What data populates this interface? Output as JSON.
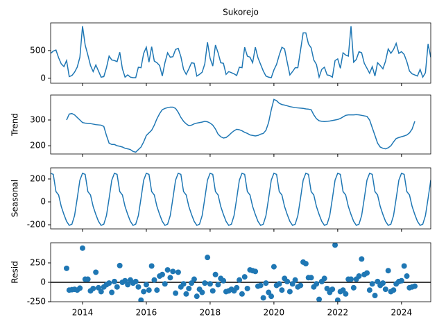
{
  "chart_data": [
    {
      "type": "line",
      "title": "Sukorejo",
      "color": "#1f77b4",
      "x": [
        2013,
        2013.083,
        2013.167,
        2013.25,
        2013.333,
        2013.417,
        2013.5,
        2013.583,
        2013.667,
        2013.75,
        2013.833,
        2013.917,
        2014,
        2014.083,
        2014.167,
        2014.25,
        2014.333,
        2014.417,
        2014.5,
        2014.583,
        2014.667,
        2014.75,
        2014.833,
        2014.917,
        2015,
        2015.083,
        2015.167,
        2015.25,
        2015.333,
        2015.417,
        2015.5,
        2015.583,
        2015.667,
        2015.75,
        2015.833,
        2015.917,
        2016,
        2016.083,
        2016.167,
        2016.25,
        2016.333,
        2016.417,
        2016.5,
        2016.583,
        2016.667,
        2016.75,
        2016.833,
        2016.917,
        2017,
        2017.083,
        2017.167,
        2017.25,
        2017.333,
        2017.417,
        2017.5,
        2017.583,
        2017.667,
        2017.75,
        2017.833,
        2017.917,
        2018,
        2018.083,
        2018.167,
        2018.25,
        2018.333,
        2018.417,
        2018.5,
        2018.583,
        2018.667,
        2018.75,
        2018.833,
        2018.917,
        2019,
        2019.083,
        2019.167,
        2019.25,
        2019.333,
        2019.417,
        2019.5,
        2019.583,
        2019.667,
        2019.75,
        2019.833,
        2019.917,
        2020,
        2020.083,
        2020.167,
        2020.25,
        2020.333,
        2020.417,
        2020.5,
        2020.583,
        2020.667,
        2020.75,
        2020.833,
        2020.917,
        2021,
        2021.083,
        2021.167,
        2021.25,
        2021.333,
        2021.417,
        2021.5,
        2021.583,
        2021.667,
        2021.75,
        2021.833,
        2021.917,
        2022,
        2022.083,
        2022.167,
        2022.25,
        2022.333,
        2022.417,
        2022.5,
        2022.583,
        2022.667,
        2022.75,
        2022.833,
        2022.917,
        2023,
        2023.083,
        2023.167,
        2023.25,
        2023.333,
        2023.417,
        2023.5,
        2023.583,
        2023.667,
        2023.75,
        2023.833,
        2023.917,
        2024,
        2024.083,
        2024.167,
        2024.25,
        2024.333,
        2024.417,
        2024.5,
        2024.583,
        2024.667,
        2024.75,
        2024.833,
        2024.917
      ],
      "values": [
        450,
        490,
        510,
        370,
        260,
        210,
        320,
        30,
        50,
        110,
        200,
        380,
        940,
        600,
        420,
        230,
        120,
        240,
        130,
        20,
        30,
        190,
        400,
        330,
        320,
        300,
        470,
        170,
        20,
        60,
        20,
        10,
        10,
        200,
        190,
        450,
        560,
        290,
        570,
        310,
        280,
        230,
        40,
        280,
        460,
        380,
        390,
        520,
        540,
        390,
        160,
        70,
        170,
        280,
        270,
        40,
        70,
        110,
        260,
        650,
        360,
        220,
        600,
        460,
        280,
        270,
        70,
        120,
        100,
        80,
        50,
        200,
        190,
        560,
        400,
        380,
        280,
        560,
        370,
        250,
        130,
        40,
        20,
        10,
        150,
        250,
        420,
        560,
        530,
        290,
        60,
        120,
        190,
        190,
        500,
        820,
        820,
        620,
        550,
        330,
        250,
        20,
        160,
        200,
        60,
        50,
        20,
        320,
        350,
        180,
        460,
        420,
        400,
        940,
        290,
        340,
        480,
        460,
        270,
        180,
        90,
        210,
        40,
        280,
        230,
        170,
        310,
        530,
        450,
        520,
        630,
        450,
        480,
        430,
        300,
        130,
        80,
        60,
        40,
        160,
        20,
        100,
        620,
        380
      ],
      "xlim": [
        2013,
        2024.917
      ],
      "xticks": [
        2014,
        2016,
        2018,
        2020,
        2022,
        2024
      ],
      "ylim": [
        -90,
        1000
      ],
      "yticks": [
        0,
        500
      ]
    },
    {
      "type": "line",
      "y_label": "Trend",
      "color": "#1f77b4",
      "x": [
        2013,
        2013.083,
        2013.167,
        2013.25,
        2013.333,
        2013.417,
        2013.5,
        2013.583,
        2013.667,
        2013.75,
        2013.833,
        2013.917,
        2014,
        2014.083,
        2014.167,
        2014.25,
        2014.333,
        2014.417,
        2014.5,
        2014.583,
        2014.667,
        2014.75,
        2014.833,
        2014.917,
        2015,
        2015.083,
        2015.167,
        2015.25,
        2015.333,
        2015.417,
        2015.5,
        2015.583,
        2015.667,
        2015.75,
        2015.833,
        2015.917,
        2016,
        2016.083,
        2016.167,
        2016.25,
        2016.333,
        2016.417,
        2016.5,
        2016.583,
        2016.667,
        2016.75,
        2016.833,
        2016.917,
        2017,
        2017.083,
        2017.167,
        2017.25,
        2017.333,
        2017.417,
        2017.5,
        2017.583,
        2017.667,
        2017.75,
        2017.833,
        2017.917,
        2018,
        2018.083,
        2018.167,
        2018.25,
        2018.333,
        2018.417,
        2018.5,
        2018.583,
        2018.667,
        2018.75,
        2018.833,
        2018.917,
        2019,
        2019.083,
        2019.167,
        2019.25,
        2019.333,
        2019.417,
        2019.5,
        2019.583,
        2019.667,
        2019.75,
        2019.833,
        2019.917,
        2020,
        2020.083,
        2020.167,
        2020.25,
        2020.333,
        2020.417,
        2020.5,
        2020.583,
        2020.667,
        2020.75,
        2020.833,
        2020.917,
        2021,
        2021.083,
        2021.167,
        2021.25,
        2021.333,
        2021.417,
        2021.5,
        2021.583,
        2021.667,
        2021.75,
        2021.833,
        2021.917,
        2022,
        2022.083,
        2022.167,
        2022.25,
        2022.333,
        2022.417,
        2022.5,
        2022.583,
        2022.667,
        2022.75,
        2022.833,
        2022.917,
        2023,
        2023.083,
        2023.167,
        2023.25,
        2023.333,
        2023.417,
        2023.5,
        2023.583,
        2023.667,
        2023.75,
        2023.833,
        2023.917,
        2024,
        2024.083,
        2024.167,
        2024.25,
        2024.333,
        2024.417,
        2024.5,
        2024.583,
        2024.667,
        2024.75,
        2024.833,
        2024.917
      ],
      "values": [
        null,
        null,
        null,
        null,
        null,
        null,
        300,
        323,
        325,
        320,
        310,
        300,
        290,
        288,
        287,
        286,
        284,
        282,
        281,
        280,
        275,
        240,
        210,
        205,
        205,
        200,
        198,
        195,
        190,
        188,
        185,
        178,
        175,
        185,
        195,
        215,
        240,
        250,
        260,
        280,
        305,
        325,
        340,
        345,
        348,
        350,
        350,
        345,
        330,
        310,
        295,
        285,
        278,
        280,
        285,
        288,
        290,
        292,
        295,
        293,
        288,
        280,
        265,
        245,
        235,
        230,
        232,
        240,
        250,
        258,
        264,
        262,
        258,
        252,
        248,
        242,
        240,
        238,
        240,
        245,
        248,
        260,
        290,
        340,
        380,
        375,
        365,
        360,
        358,
        355,
        352,
        350,
        348,
        347,
        346,
        345,
        343,
        342,
        340,
        320,
        305,
        297,
        295,
        294,
        295,
        296,
        298,
        300,
        302,
        306,
        312,
        318,
        320,
        320,
        320,
        321,
        320,
        318,
        316,
        314,
        300,
        270,
        240,
        210,
        195,
        190,
        188,
        192,
        200,
        215,
        228,
        232,
        235,
        238,
        242,
        250,
        265,
        295,
        null,
        null,
        null,
        null,
        null,
        null
      ],
      "xlim": [
        2013,
        2024.917
      ],
      "xticks": [
        2014,
        2016,
        2018,
        2020,
        2022,
        2024
      ],
      "ylim": [
        168,
        397
      ],
      "yticks": [
        200,
        300
      ]
    },
    {
      "type": "line",
      "y_label": "Seasonal",
      "color": "#1f77b4",
      "x": [
        2013,
        2013.083,
        2013.167,
        2013.25,
        2013.333,
        2013.417,
        2013.5,
        2013.583,
        2013.667,
        2013.75,
        2013.833,
        2013.917,
        2014,
        2014.083,
        2014.167,
        2014.25,
        2014.333,
        2014.417,
        2014.5,
        2014.583,
        2014.667,
        2014.75,
        2014.833,
        2014.917,
        2015,
        2015.083,
        2015.167,
        2015.25,
        2015.333,
        2015.417,
        2015.5,
        2015.583,
        2015.667,
        2015.75,
        2015.833,
        2015.917,
        2016,
        2016.083,
        2016.167,
        2016.25,
        2016.333,
        2016.417,
        2016.5,
        2016.583,
        2016.667,
        2016.75,
        2016.833,
        2016.917,
        2017,
        2017.083,
        2017.167,
        2017.25,
        2017.333,
        2017.417,
        2017.5,
        2017.583,
        2017.667,
        2017.75,
        2017.833,
        2017.917,
        2018,
        2018.083,
        2018.167,
        2018.25,
        2018.333,
        2018.417,
        2018.5,
        2018.583,
        2018.667,
        2018.75,
        2018.833,
        2018.917,
        2019,
        2019.083,
        2019.167,
        2019.25,
        2019.333,
        2019.417,
        2019.5,
        2019.583,
        2019.667,
        2019.75,
        2019.833,
        2019.917,
        2020,
        2020.083,
        2020.167,
        2020.25,
        2020.333,
        2020.417,
        2020.5,
        2020.583,
        2020.667,
        2020.75,
        2020.833,
        2020.917,
        2021,
        2021.083,
        2021.167,
        2021.25,
        2021.333,
        2021.417,
        2021.5,
        2021.583,
        2021.667,
        2021.75,
        2021.833,
        2021.917,
        2022,
        2022.083,
        2022.167,
        2022.25,
        2022.333,
        2022.417,
        2022.5,
        2022.583,
        2022.667,
        2022.75,
        2022.833,
        2022.917,
        2023,
        2023.083,
        2023.167,
        2023.25,
        2023.333,
        2023.417,
        2023.5,
        2023.583,
        2023.667,
        2023.75,
        2023.833,
        2023.917,
        2024,
        2024.083,
        2024.167,
        2024.25,
        2024.333,
        2024.417,
        2024.5,
        2024.583,
        2024.667,
        2024.75,
        2024.833,
        2024.917
      ],
      "values": [
        250,
        240,
        90,
        60,
        -40,
        -110,
        -170,
        -205,
        -195,
        -120,
        30,
        190,
        250,
        240,
        90,
        60,
        -40,
        -110,
        -170,
        -205,
        -195,
        -120,
        30,
        190,
        250,
        240,
        90,
        60,
        -40,
        -110,
        -170,
        -205,
        -195,
        -120,
        30,
        190,
        250,
        240,
        90,
        60,
        -40,
        -110,
        -170,
        -205,
        -195,
        -120,
        30,
        190,
        250,
        240,
        90,
        60,
        -40,
        -110,
        -170,
        -205,
        -195,
        -120,
        30,
        190,
        250,
        240,
        90,
        60,
        -40,
        -110,
        -170,
        -205,
        -195,
        -120,
        30,
        190,
        250,
        240,
        90,
        60,
        -40,
        -110,
        -170,
        -205,
        -195,
        -120,
        30,
        190,
        250,
        240,
        90,
        60,
        -40,
        -110,
        -170,
        -205,
        -195,
        -120,
        30,
        190,
        250,
        240,
        90,
        60,
        -40,
        -110,
        -170,
        -205,
        -195,
        -120,
        30,
        190,
        250,
        240,
        90,
        60,
        -40,
        -110,
        -170,
        -205,
        -195,
        -120,
        30,
        190,
        250,
        240,
        90,
        60,
        -40,
        -110,
        -170,
        -205,
        -195,
        -120,
        30,
        190,
        250,
        240,
        90,
        60,
        -40,
        -110,
        -170,
        -205,
        -195,
        -120,
        30,
        190
      ],
      "xlim": [
        2013,
        2024.917
      ],
      "xticks": [
        2014,
        2016,
        2018,
        2020,
        2022,
        2024
      ],
      "ylim": [
        -236,
        297
      ],
      "yticks": [
        -200,
        0,
        200
      ]
    },
    {
      "type": "scatter",
      "y_label": "Resid",
      "color": "#1f77b4",
      "reference_line": 0,
      "x": [
        2013,
        2013.083,
        2013.167,
        2013.25,
        2013.333,
        2013.417,
        2013.5,
        2013.583,
        2013.667,
        2013.75,
        2013.833,
        2013.917,
        2014,
        2014.083,
        2014.167,
        2014.25,
        2014.333,
        2014.417,
        2014.5,
        2014.583,
        2014.667,
        2014.75,
        2014.833,
        2014.917,
        2015,
        2015.083,
        2015.167,
        2015.25,
        2015.333,
        2015.417,
        2015.5,
        2015.583,
        2015.667,
        2015.75,
        2015.833,
        2015.917,
        2016,
        2016.083,
        2016.167,
        2016.25,
        2016.333,
        2016.417,
        2016.5,
        2016.583,
        2016.667,
        2016.75,
        2016.833,
        2016.917,
        2017,
        2017.083,
        2017.167,
        2017.25,
        2017.333,
        2017.417,
        2017.5,
        2017.583,
        2017.667,
        2017.75,
        2017.833,
        2017.917,
        2018,
        2018.083,
        2018.167,
        2018.25,
        2018.333,
        2018.417,
        2018.5,
        2018.583,
        2018.667,
        2018.75,
        2018.833,
        2018.917,
        2019,
        2019.083,
        2019.167,
        2019.25,
        2019.333,
        2019.417,
        2019.5,
        2019.583,
        2019.667,
        2019.75,
        2019.833,
        2019.917,
        2020,
        2020.083,
        2020.167,
        2020.25,
        2020.333,
        2020.417,
        2020.5,
        2020.583,
        2020.667,
        2020.75,
        2020.833,
        2020.917,
        2021,
        2021.083,
        2021.167,
        2021.25,
        2021.333,
        2021.417,
        2021.5,
        2021.583,
        2021.667,
        2021.75,
        2021.833,
        2021.917,
        2022,
        2022.083,
        2022.167,
        2022.25,
        2022.333,
        2022.417,
        2022.5,
        2022.583,
        2022.667,
        2022.75,
        2022.833,
        2022.917,
        2023,
        2023.083,
        2023.167,
        2023.25,
        2023.333,
        2023.417,
        2023.5,
        2023.583,
        2023.667,
        2023.75,
        2023.833,
        2023.917,
        2024,
        2024.083,
        2024.167,
        2024.25,
        2024.333,
        2024.417,
        2024.5,
        2024.583,
        2024.667,
        2024.75,
        2024.833,
        2024.917
      ],
      "values": [
        null,
        null,
        null,
        null,
        null,
        null,
        180,
        -100,
        -95,
        -90,
        -100,
        -75,
        440,
        40,
        40,
        -110,
        -80,
        130,
        -70,
        -120,
        -60,
        -30,
        -10,
        -130,
        10,
        -60,
        215,
        0,
        20,
        -30,
        30,
        -10,
        10,
        -60,
        -230,
        -120,
        -30,
        -100,
        210,
        30,
        -100,
        80,
        100,
        -20,
        160,
        60,
        140,
        -140,
        130,
        -60,
        -20,
        -150,
        -80,
        -10,
        40,
        -180,
        -90,
        -130,
        -10,
        320,
        -20,
        -110,
        100,
        -30,
        50,
        20,
        -120,
        -110,
        -90,
        -110,
        -70,
        30,
        -150,
        70,
        -80,
        160,
        150,
        140,
        -50,
        -40,
        -200,
        -10,
        -130,
        -180,
        200,
        -40,
        -20,
        -100,
        50,
        10,
        -120,
        -20,
        30,
        -60,
        -40,
        260,
        240,
        60,
        60,
        -60,
        -20,
        -220,
        10,
        50,
        -80,
        -130,
        -90,
        480,
        -230,
        -120,
        -100,
        -150,
        40,
        40,
        -70,
        40,
        80,
        300,
        100,
        120,
        -100,
        -20,
        -170,
        10,
        -40,
        -10,
        -90,
        150,
        -120,
        -100,
        -20,
        10,
        20,
        210,
        80,
        -70,
        -60,
        -50,
        null,
        null,
        null,
        null,
        null,
        null
      ],
      "xlim": [
        2013,
        2024.917
      ],
      "xticks": [
        2014,
        2016,
        2018,
        2020,
        2022,
        2024
      ],
      "ylim": [
        -250,
        509
      ],
      "yticks": [
        -250,
        0,
        250
      ]
    }
  ]
}
